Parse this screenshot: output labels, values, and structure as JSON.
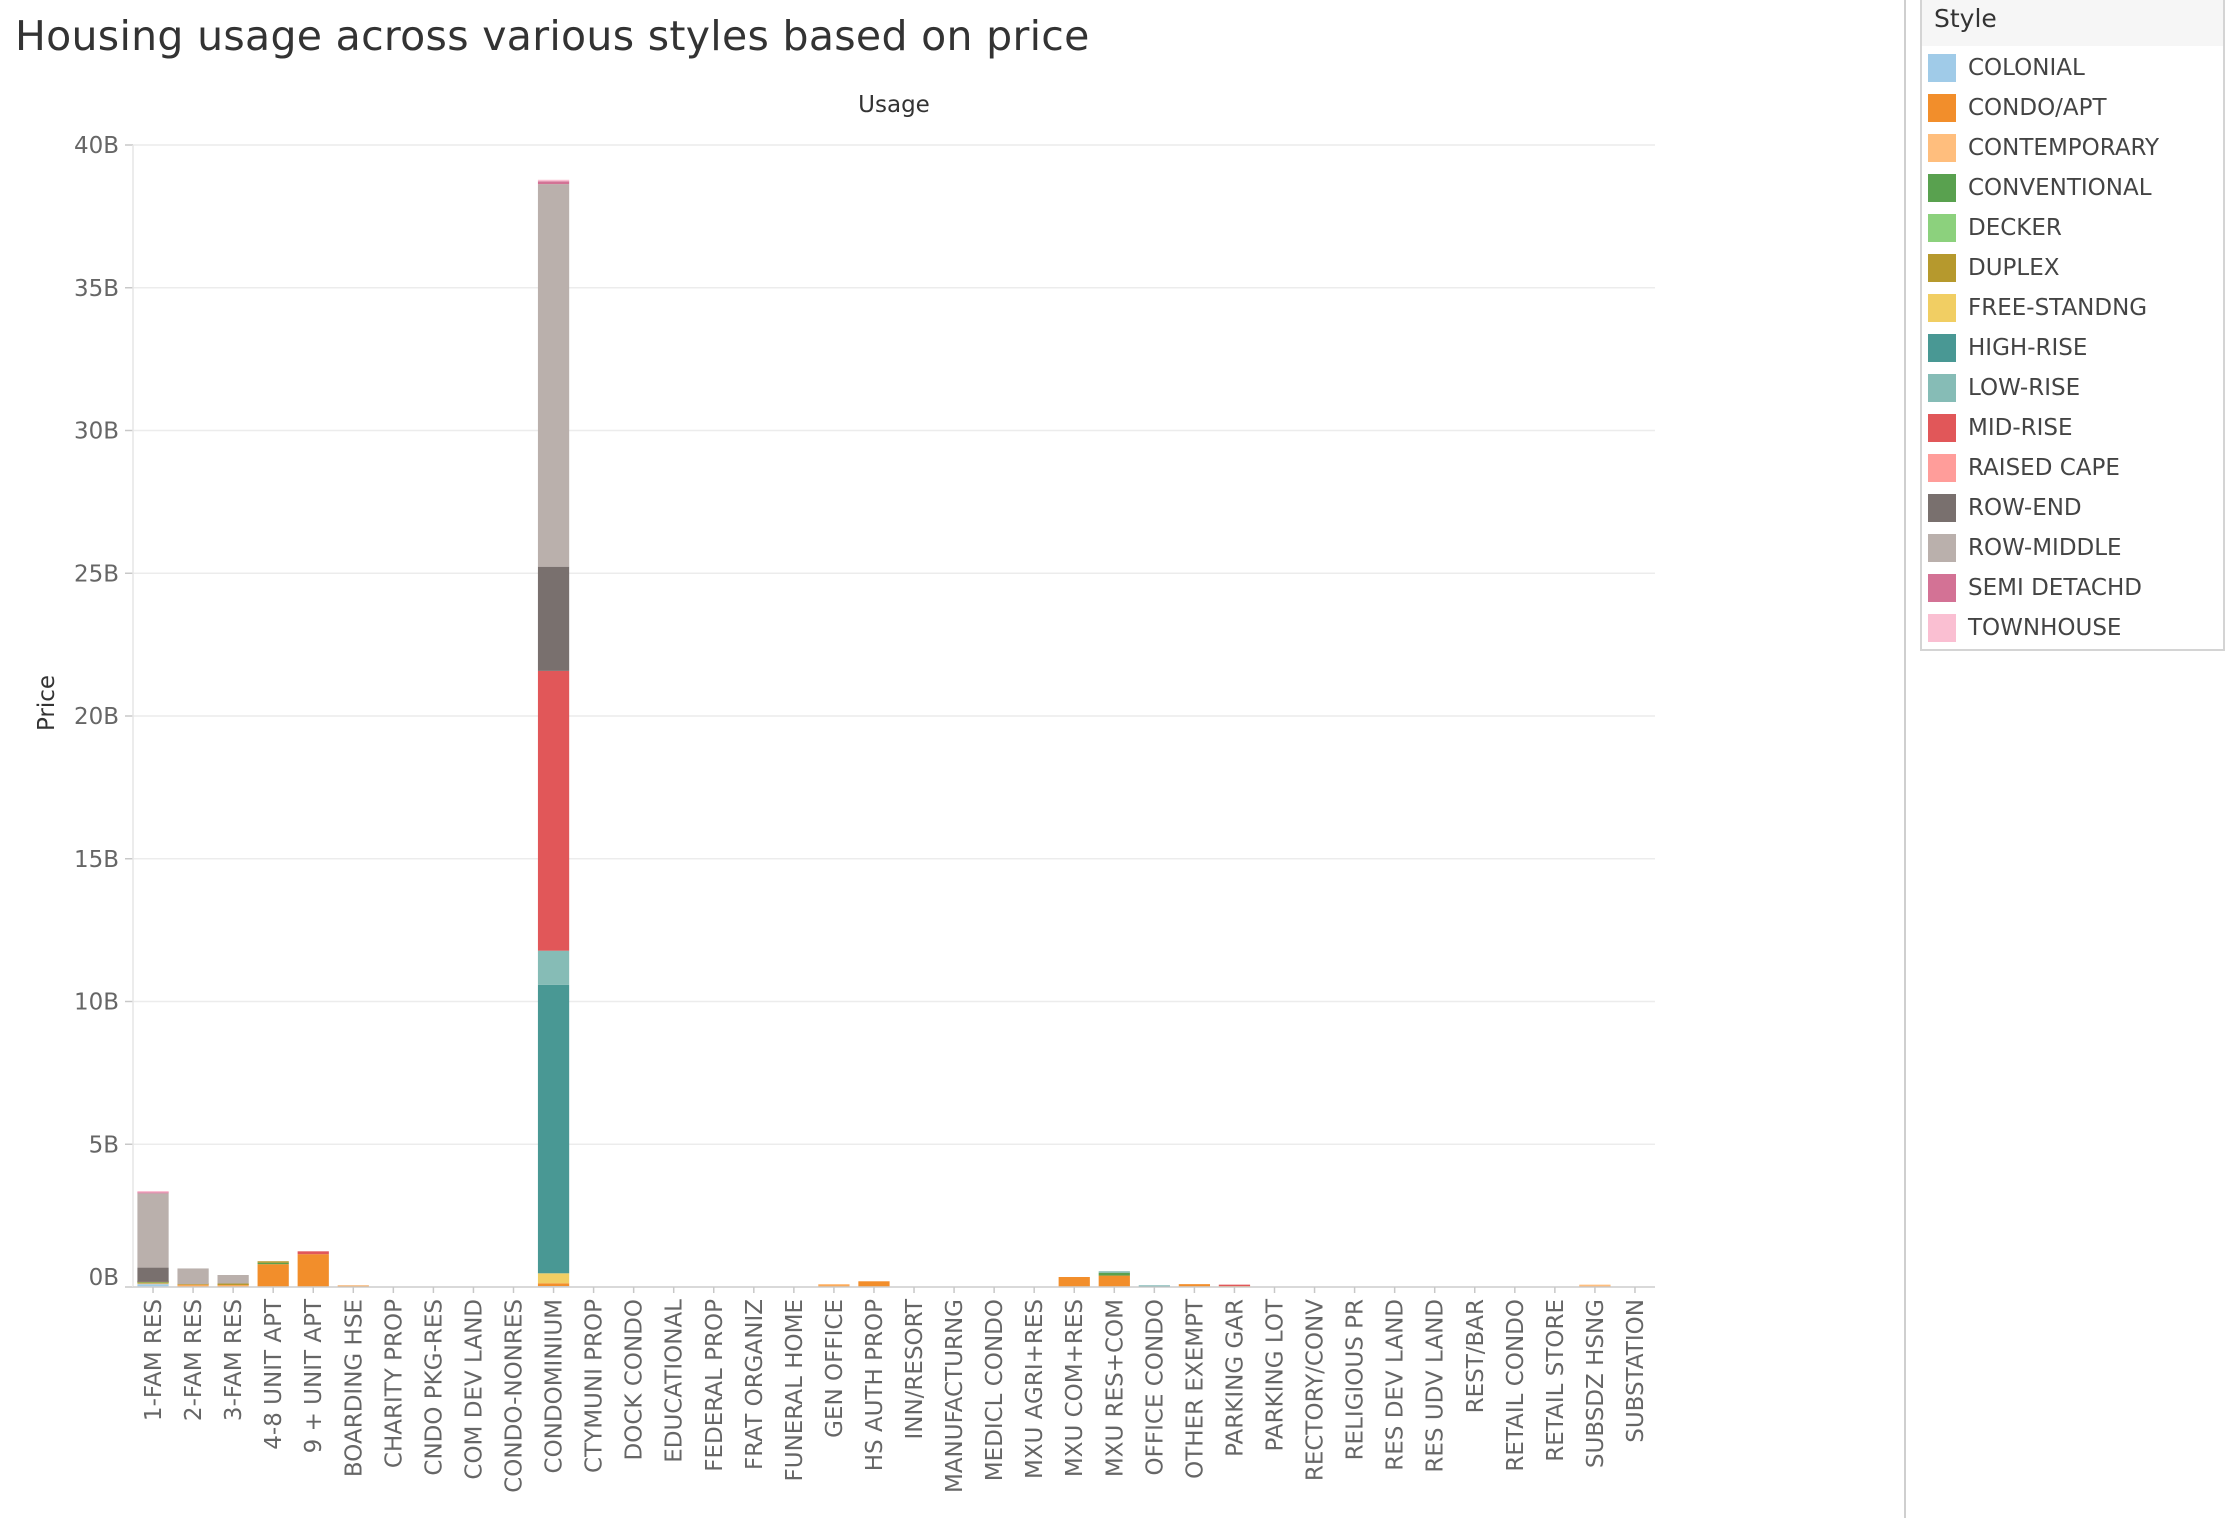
{
  "chart_data": {
    "type": "bar",
    "stacked": true,
    "title": "Housing usage across various styles based on price",
    "xlabel": "Usage",
    "ylabel": "Price",
    "ylim": [
      0,
      40
    ],
    "y_unit": "B",
    "yticks": [
      0,
      5,
      10,
      15,
      20,
      25,
      30,
      35,
      40
    ],
    "ytick_labels": [
      "0B",
      "5B",
      "10B",
      "15B",
      "20B",
      "25B",
      "30B",
      "35B",
      "40B"
    ],
    "grid": true,
    "legend": {
      "title": "Style",
      "position": "right"
    },
    "categories": [
      "1-FAM RES",
      "2-FAM RES",
      "3-FAM RES",
      "4-8 UNIT APT",
      "9 + UNIT APT",
      "BOARDING HSE",
      "CHARITY PROP",
      "CNDO PKG-RES",
      "COM DEV LAND",
      "CONDO-NONRES",
      "CONDOMINIUM",
      "CTYMUNI PROP",
      "DOCK CONDO",
      "EDUCATIONAL",
      "FEDERAL PROP",
      "FRAT ORGANIZ",
      "FUNERAL HOME",
      "GEN OFFICE",
      "HS AUTH PROP",
      "INN/RESORT",
      "MANUFACTURNG",
      "MEDICL CONDO",
      "MXU AGRI+RES",
      "MXU COM+RES",
      "MXU RES+COM",
      "OFFICE CONDO",
      "OTHER EXEMPT",
      "PARKING GAR",
      "PARKING LOT",
      "RECTORY/CONV",
      "RELIGIOUS PR",
      "RES DEV LAND",
      "RES UDV LAND",
      "REST/BAR",
      "RETAIL CONDO",
      "RETAIL STORE",
      "SUBSDZ HSNG",
      "SUBSTATION"
    ],
    "series": [
      {
        "name": "COLONIAL",
        "color": "#a0cbe8",
        "values": [
          0.1,
          0,
          0,
          0,
          0,
          0,
          0,
          0,
          0,
          0,
          0.03,
          0,
          0,
          0,
          0,
          0,
          0,
          0,
          0,
          0,
          0,
          0,
          0,
          0,
          0,
          0,
          0,
          0,
          0,
          0,
          0,
          0,
          0,
          0,
          0,
          0,
          0,
          0
        ]
      },
      {
        "name": "CONDO/APT",
        "color": "#f28e2b",
        "values": [
          0,
          0.05,
          0.05,
          0.8,
          1.15,
          0.05,
          0,
          0,
          0,
          0,
          0.1,
          0,
          0,
          0,
          0,
          0,
          0,
          0.05,
          0.2,
          0,
          0,
          0,
          0,
          0.35,
          0.4,
          0,
          0.1,
          0.03,
          0,
          0,
          0,
          0,
          0,
          0,
          0,
          0,
          0.03,
          0
        ]
      },
      {
        "name": "CONTEMPORARY",
        "color": "#ffbe7d",
        "values": [
          0.03,
          0.03,
          0.02,
          0,
          0,
          0,
          0,
          0,
          0,
          0,
          0,
          0,
          0,
          0,
          0,
          0,
          0,
          0.02,
          0,
          0,
          0,
          0,
          0,
          0,
          0,
          0,
          0,
          0,
          0,
          0,
          0,
          0,
          0,
          0,
          0,
          0,
          0.02,
          0
        ]
      },
      {
        "name": "CONVENTIONAL",
        "color": "#59a14f",
        "values": [
          0.02,
          0,
          0,
          0.05,
          0,
          0,
          0,
          0,
          0,
          0,
          0,
          0,
          0,
          0,
          0,
          0,
          0,
          0,
          0,
          0,
          0,
          0,
          0,
          0,
          0.1,
          0,
          0,
          0,
          0,
          0,
          0,
          0,
          0,
          0,
          0,
          0,
          0,
          0
        ]
      },
      {
        "name": "DECKER",
        "color": "#8cd17d",
        "values": [
          0.01,
          0,
          0,
          0,
          0,
          0,
          0,
          0,
          0,
          0,
          0,
          0,
          0,
          0,
          0,
          0,
          0,
          0,
          0,
          0,
          0,
          0,
          0,
          0,
          0,
          0,
          0,
          0,
          0,
          0,
          0,
          0,
          0,
          0,
          0,
          0,
          0,
          0
        ]
      },
      {
        "name": "DUPLEX",
        "color": "#b6992d",
        "values": [
          0.01,
          0.02,
          0.05,
          0.05,
          0,
          0,
          0,
          0,
          0,
          0,
          0,
          0,
          0,
          0,
          0,
          0,
          0,
          0,
          0,
          0,
          0,
          0,
          0,
          0,
          0,
          0,
          0,
          0,
          0,
          0,
          0,
          0,
          0,
          0,
          0,
          0,
          0,
          0
        ]
      },
      {
        "name": "FREE-STANDNG",
        "color": "#f1ce63",
        "values": [
          0,
          0,
          0,
          0,
          0,
          0,
          0,
          0,
          0,
          0,
          0.35,
          0,
          0,
          0,
          0,
          0,
          0,
          0,
          0,
          0,
          0,
          0,
          0,
          0,
          0,
          0,
          0,
          0,
          0,
          0,
          0,
          0,
          0,
          0,
          0,
          0,
          0,
          0
        ]
      },
      {
        "name": "HIGH-RISE",
        "color": "#499894",
        "values": [
          0,
          0,
          0,
          0,
          0,
          0,
          0,
          0,
          0,
          0,
          10.1,
          0,
          0,
          0,
          0,
          0,
          0,
          0,
          0,
          0,
          0,
          0,
          0,
          0,
          0,
          0.05,
          0,
          0,
          0,
          0,
          0,
          0,
          0,
          0,
          0,
          0,
          0,
          0
        ]
      },
      {
        "name": "LOW-RISE",
        "color": "#86bcb6",
        "values": [
          0,
          0,
          0,
          0,
          0,
          0,
          0,
          0,
          0,
          0,
          1.2,
          0,
          0,
          0,
          0,
          0,
          0,
          0,
          0,
          0,
          0,
          0,
          0,
          0,
          0.05,
          0,
          0,
          0,
          0,
          0,
          0,
          0,
          0,
          0,
          0,
          0,
          0,
          0
        ]
      },
      {
        "name": "MID-RISE",
        "color": "#e15759",
        "values": [
          0,
          0,
          0,
          0,
          0.1,
          0,
          0,
          0,
          0,
          0,
          9.8,
          0,
          0,
          0,
          0,
          0,
          0,
          0,
          0,
          0,
          0,
          0,
          0,
          0,
          0,
          0,
          0,
          0.02,
          0,
          0,
          0,
          0,
          0,
          0,
          0,
          0,
          0,
          0
        ]
      },
      {
        "name": "RAISED CAPE",
        "color": "#ff9d9a",
        "values": [
          0.01,
          0,
          0,
          0,
          0,
          0,
          0,
          0,
          0,
          0,
          0,
          0,
          0,
          0,
          0,
          0,
          0,
          0,
          0,
          0,
          0,
          0,
          0,
          0,
          0,
          0,
          0,
          0,
          0,
          0,
          0,
          0,
          0,
          0,
          0,
          0,
          0,
          0
        ]
      },
      {
        "name": "ROW-END",
        "color": "#79706e",
        "values": [
          0.5,
          0,
          0,
          0,
          0,
          0,
          0,
          0,
          0,
          0,
          3.65,
          0,
          0,
          0,
          0,
          0,
          0,
          0,
          0,
          0,
          0,
          0,
          0,
          0,
          0,
          0,
          0,
          0,
          0,
          0,
          0,
          0,
          0,
          0,
          0,
          0,
          0,
          0
        ]
      },
      {
        "name": "ROW-MIDDLE",
        "color": "#bab0ac",
        "values": [
          2.6,
          0.55,
          0.3,
          0,
          0,
          0,
          0,
          0,
          0,
          0,
          13.4,
          0,
          0,
          0,
          0,
          0,
          0,
          0,
          0,
          0,
          0,
          0,
          0,
          0,
          0,
          0,
          0,
          0,
          0,
          0,
          0,
          0,
          0,
          0,
          0,
          0,
          0,
          0
        ]
      },
      {
        "name": "SEMI DETACHD",
        "color": "#d37295",
        "values": [
          0.03,
          0,
          0,
          0,
          0,
          0,
          0,
          0,
          0,
          0,
          0.1,
          0,
          0,
          0,
          0,
          0,
          0,
          0,
          0,
          0,
          0,
          0,
          0,
          0,
          0,
          0,
          0,
          0,
          0,
          0,
          0,
          0,
          0,
          0,
          0,
          0,
          0,
          0
        ]
      },
      {
        "name": "TOWNHOUSE",
        "color": "#fabfd2",
        "values": [
          0.02,
          0,
          0,
          0,
          0,
          0,
          0,
          0,
          0,
          0,
          0.05,
          0,
          0,
          0,
          0,
          0,
          0,
          0,
          0,
          0,
          0,
          0,
          0,
          0,
          0,
          0,
          0,
          0,
          0,
          0,
          0,
          0,
          0,
          0,
          0,
          0,
          0,
          0
        ]
      }
    ]
  }
}
